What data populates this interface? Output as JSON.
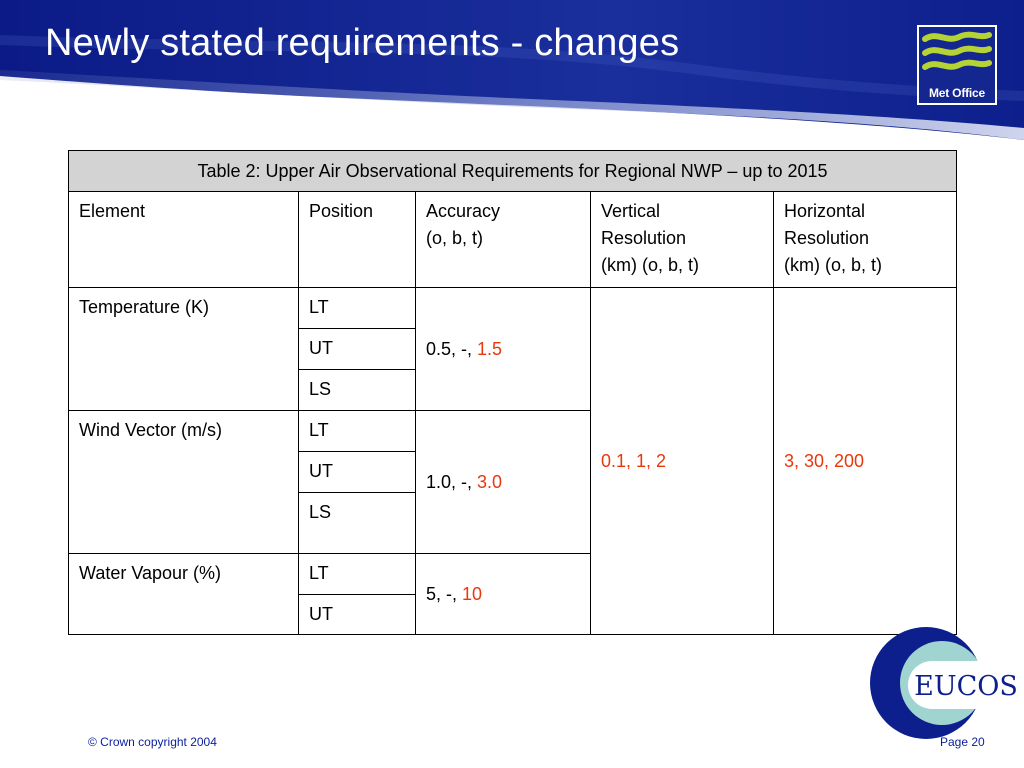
{
  "slide": {
    "title": "Newly stated requirements - changes",
    "logo_text": "Met Office",
    "eucos_text": "EUCOS"
  },
  "table": {
    "caption": "Table 2: Upper Air Observational Requirements for Regional NWP – up to 2015",
    "headers": {
      "element": "Element",
      "position": "Position",
      "accuracy_line1": "Accuracy",
      "accuracy_line2": "(o, b, t)",
      "vertical_line1": "Vertical",
      "vertical_line2": "Resolution",
      "vertical_line3": "(km) (o, b, t)",
      "horizontal_line1": "Horizontal",
      "horizontal_line2": "Resolution",
      "horizontal_line3": "(km) (o, b, t)"
    },
    "rows": [
      {
        "element": "Temperature (K)",
        "positions": [
          "LT",
          "UT",
          "LS"
        ],
        "accuracy_prefix": "0.5, -,",
        "accuracy_highlight": "1.5"
      },
      {
        "element": "Wind Vector (m/s)",
        "positions": [
          "LT",
          "UT",
          "LS"
        ],
        "accuracy_prefix": "1.0, -,",
        "accuracy_highlight": "3.0"
      },
      {
        "element": "Water Vapour (%)",
        "positions": [
          "LT",
          "UT"
        ],
        "accuracy_prefix": "5, -,",
        "accuracy_highlight": "10"
      }
    ],
    "vertical_resolution": "0.1, 1, 2",
    "horizontal_resolution": "3, 30, 200"
  },
  "footer": {
    "copyright": "© Crown copyright 2004",
    "page": "Page 20"
  },
  "colors": {
    "banner_blue": "#0d1f8c",
    "highlight_red": "#e8380d",
    "logo_green": "#b5d334",
    "header_gray": "#d3d3d3"
  }
}
